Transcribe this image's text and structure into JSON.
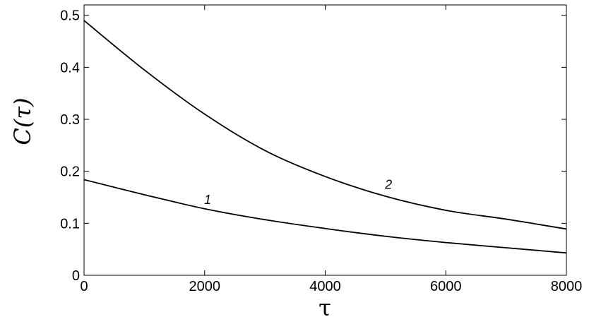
{
  "chart_data": {
    "type": "line",
    "xlabel": "τ",
    "ylabel": "C(τ)",
    "xlim": [
      0,
      8000
    ],
    "ylim": [
      0,
      0.52
    ],
    "xticks": [
      0,
      2000,
      4000,
      6000,
      8000
    ],
    "xtick_labels": [
      "0",
      "2000",
      "4000",
      "6000",
      "8000"
    ],
    "yticks": [
      0,
      0.1,
      0.2,
      0.3,
      0.4,
      0.5
    ],
    "ytick_labels": [
      "0",
      "0.1",
      "0.2",
      "0.3",
      "0.4",
      "0.5"
    ],
    "grid": false,
    "series": [
      {
        "name": "1",
        "x": [
          0,
          1000,
          2000,
          3000,
          4000,
          5000,
          6000,
          7000,
          8000
        ],
        "y": [
          0.184,
          0.155,
          0.128,
          0.107,
          0.09,
          0.075,
          0.063,
          0.053,
          0.043
        ]
      },
      {
        "name": "2",
        "x": [
          0,
          1000,
          2000,
          3000,
          4000,
          5000,
          6000,
          7000,
          8000
        ],
        "y": [
          0.49,
          0.395,
          0.31,
          0.24,
          0.19,
          0.152,
          0.125,
          0.108,
          0.089
        ]
      }
    ],
    "annotations": [
      {
        "text": "1",
        "x": 2050,
        "y": 0.137
      },
      {
        "text": "2",
        "x": 5050,
        "y": 0.166
      }
    ]
  }
}
